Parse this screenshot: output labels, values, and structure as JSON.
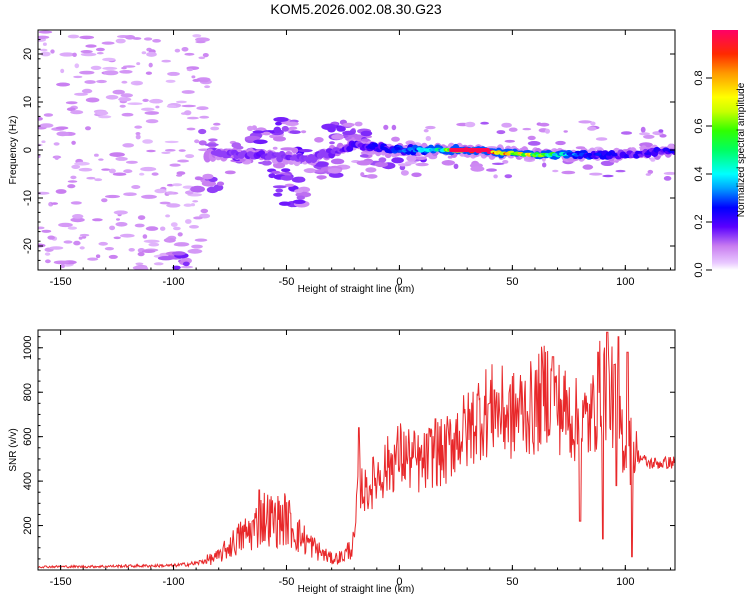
{
  "chart_data": [
    {
      "type": "heatmap",
      "title": "KOM5.2026.002.08.30.G23",
      "xlabel": "Height of straight line (km)",
      "ylabel": "Frequency (Hz)",
      "xlim": [
        -160,
        122
      ],
      "ylim": [
        -25,
        25
      ],
      "xticks": [
        -150,
        -100,
        -50,
        0,
        50,
        100
      ],
      "yticks": [
        -20,
        -10,
        0,
        10,
        20
      ],
      "colorbar": {
        "label": "Normalized spectral amplitude",
        "range": [
          0,
          1
        ],
        "ticks": [
          "0.0",
          "0.2",
          "0.4",
          "0.6",
          "0.8"
        ],
        "ticks_num": [
          0,
          0.2,
          0.4,
          0.6,
          0.8
        ]
      },
      "ridge": [
        {
          "x": -80,
          "y": -1,
          "a": 0.12
        },
        {
          "x": -60,
          "y": -1,
          "a": 0.14
        },
        {
          "x": -40,
          "y": -2,
          "a": 0.12
        },
        {
          "x": -20,
          "y": 1,
          "a": 0.16
        },
        {
          "x": 0,
          "y": 0,
          "a": 0.24
        },
        {
          "x": 20,
          "y": 0,
          "a": 0.45
        },
        {
          "x": 30,
          "y": 0,
          "a": 0.95
        },
        {
          "x": 45,
          "y": -0.5,
          "a": 0.75
        },
        {
          "x": 60,
          "y": -1,
          "a": 0.6
        },
        {
          "x": 80,
          "y": -1,
          "a": 0.25
        },
        {
          "x": 100,
          "y": -1,
          "a": 0.18
        },
        {
          "x": 122,
          "y": 0,
          "a": 0.22
        }
      ],
      "blobs": [
        {
          "x": -78,
          "y": 0,
          "a": 0.12
        },
        {
          "x": -68,
          "y": -1,
          "a": 0.12
        },
        {
          "x": -60,
          "y": 3,
          "a": 0.12
        },
        {
          "x": -52,
          "y": 5,
          "a": 0.12
        },
        {
          "x": -55,
          "y": -4,
          "a": 0.12
        },
        {
          "x": -48,
          "y": -7,
          "a": 0.12
        },
        {
          "x": -48,
          "y": -10,
          "a": 0.12
        },
        {
          "x": -85,
          "y": -7,
          "a": 0.12
        },
        {
          "x": -100,
          "y": -23,
          "a": 0.12
        },
        {
          "x": -45,
          "y": -1,
          "a": 0.14
        },
        {
          "x": -30,
          "y": -4,
          "a": 0.12
        },
        {
          "x": -28,
          "y": 4,
          "a": 0.12
        },
        {
          "x": -20,
          "y": 3,
          "a": 0.12
        },
        {
          "x": -10,
          "y": -2,
          "a": 0.12
        },
        {
          "x": 5,
          "y": -1,
          "a": 0.12
        }
      ]
    },
    {
      "type": "line",
      "xlabel": "Height of straight line (km)",
      "ylabel": "SNR (v/v)",
      "xlim": [
        -160,
        122
      ],
      "ylim": [
        0,
        1080
      ],
      "xticks": [
        -150,
        -100,
        -50,
        0,
        50,
        100
      ],
      "yticks": [
        200,
        400,
        600,
        800,
        1000
      ],
      "color": "#e8282a",
      "series": [
        {
          "name": "SNR",
          "x": [
            -160,
            -140,
            -120,
            -100,
            -90,
            -80,
            -75,
            -70,
            -65,
            -60,
            -55,
            -50,
            -45,
            -40,
            -35,
            -30,
            -25,
            -20,
            -18,
            -15,
            -10,
            -5,
            0,
            5,
            10,
            15,
            20,
            25,
            30,
            35,
            40,
            45,
            50,
            55,
            60,
            65,
            70,
            75,
            80,
            85,
            90,
            95,
            100,
            105,
            110,
            115,
            122
          ],
          "values": [
            15,
            15,
            18,
            20,
            30,
            60,
            110,
            150,
            180,
            240,
            220,
            230,
            160,
            120,
            80,
            50,
            60,
            120,
            400,
            350,
            420,
            470,
            520,
            500,
            470,
            530,
            520,
            610,
            620,
            700,
            720,
            710,
            690,
            730,
            720,
            820,
            740,
            700,
            650,
            680,
            850,
            760,
            560,
            520,
            480,
            480,
            485
          ]
        }
      ],
      "minima": [
        {
          "x": 80,
          "v": 220
        },
        {
          "x": 90,
          "v": 140
        },
        {
          "x": 103,
          "v": 60
        },
        {
          "x": 68,
          "v": 430
        },
        {
          "x": 96,
          "v": 380
        }
      ],
      "maxima": [
        {
          "x": 68,
          "v": 960
        },
        {
          "x": 88,
          "v": 980
        },
        {
          "x": 92,
          "v": 1070
        },
        {
          "x": 97,
          "v": 1050
        },
        {
          "x": 101,
          "v": 980
        },
        {
          "x": -18,
          "v": 640
        },
        {
          "x": 16,
          "v": 680
        },
        {
          "x": 42,
          "v": 810
        },
        {
          "x": -62,
          "v": 360
        }
      ]
    }
  ]
}
